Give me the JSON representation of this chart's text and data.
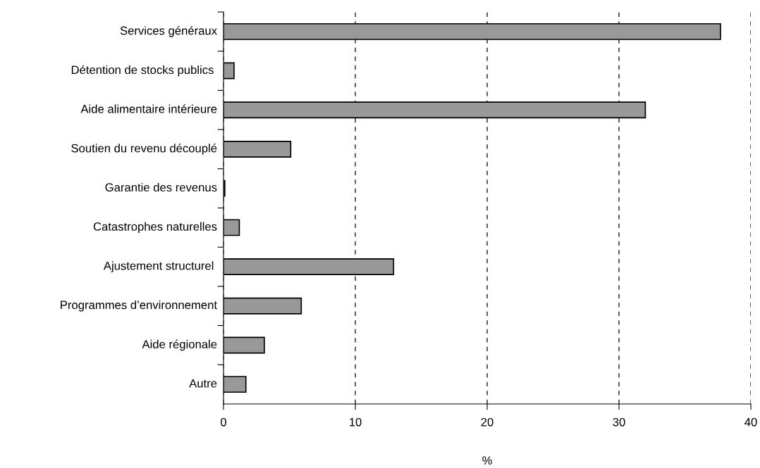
{
  "chart_data": {
    "type": "bar",
    "orientation": "horizontal",
    "xlabel": "%",
    "categories": [
      "Services généraux",
      "Détention de stocks publics ",
      "Aide alimentaire intérieure",
      "Soutien du revenu découplé",
      "Garantie des revenus",
      "Catastrophes naturelles",
      "Ajustement structurel ",
      "Programmes d’environnement",
      "Aide régionale",
      "Autre"
    ],
    "values": [
      37.7,
      0.8,
      32.0,
      5.1,
      0.1,
      1.2,
      12.9,
      5.9,
      3.1,
      1.7
    ],
    "color": "#999999",
    "xlim": [
      0,
      40
    ],
    "xticks": [
      0,
      10,
      20,
      30,
      40
    ],
    "grid": "x",
    "legend": false
  }
}
